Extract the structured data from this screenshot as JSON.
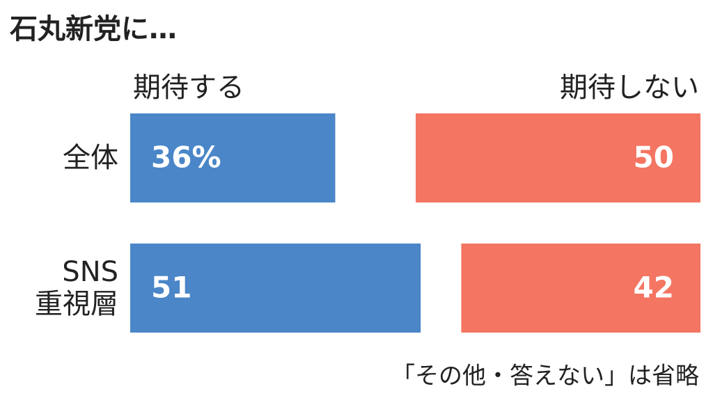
{
  "chart_data": {
    "type": "bar",
    "title": "石丸新党に…",
    "categories": [
      "全体",
      "SNS\n重視層"
    ],
    "series": [
      {
        "name": "期待する",
        "color": "#4a86c8",
        "values": [
          36,
          51
        ],
        "value_labels": [
          "36%",
          "51"
        ]
      },
      {
        "name": "期待しない",
        "color": "#f47562",
        "values": [
          50,
          42
        ],
        "value_labels": [
          "50",
          "42"
        ]
      }
    ],
    "note": "「その他・答えない」は省略"
  }
}
